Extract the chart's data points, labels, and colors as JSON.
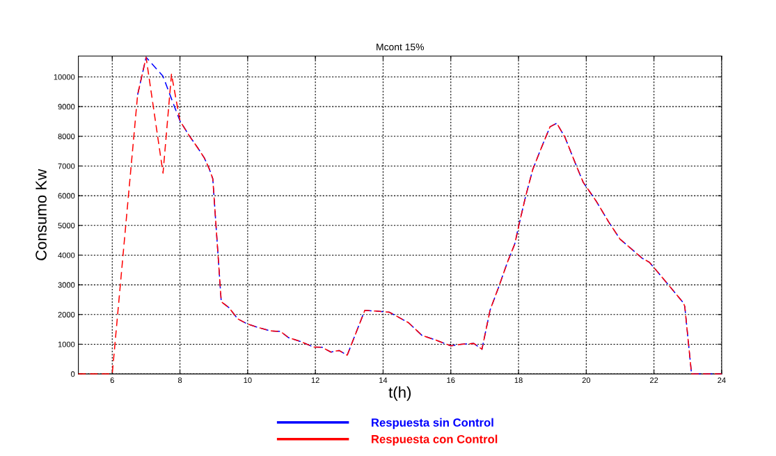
{
  "chart_data": {
    "type": "line",
    "title": "Mcont 15%",
    "xlabel": "t(h)",
    "ylabel": "Consumo Kw",
    "xlim": [
      5,
      24
    ],
    "xticks": [
      6,
      8,
      10,
      12,
      14,
      16,
      18,
      20,
      22,
      24
    ],
    "ylim": [
      0,
      10700
    ],
    "yticks": [
      0,
      1000,
      2000,
      3000,
      4000,
      5000,
      6000,
      7000,
      8000,
      9000,
      10000
    ],
    "grid": true,
    "legend": "bottom",
    "line_style": "dashed",
    "marker": "none",
    "series": [
      {
        "name": "Respuesta sin Control",
        "color": "#0000ff",
        "x": [
          6.75,
          7.0,
          7.5,
          7.84,
          8.0,
          8.28,
          8.52,
          8.72,
          8.86,
          8.97,
          9.22,
          9.44,
          9.71,
          9.98,
          10.25,
          10.66,
          10.97,
          11.21,
          11.54,
          11.95,
          12.19,
          12.46,
          12.7,
          12.94,
          13.46,
          13.79,
          14.19,
          14.75,
          15.15,
          15.56,
          16.0,
          16.31,
          16.68,
          16.92,
          17.16,
          17.43,
          17.67,
          17.89,
          18.01,
          18.21,
          18.42,
          18.62,
          18.93,
          19.13,
          19.37,
          19.71,
          19.91,
          20.29,
          20.66,
          21.0,
          21.44,
          21.65,
          21.87,
          22.36,
          22.87,
          22.91,
          23.11,
          23.66,
          24
        ],
        "values": [
          9400,
          10660,
          10020,
          8990,
          8520,
          8010,
          7620,
          7270,
          6920,
          6570,
          2430,
          2240,
          1850,
          1690,
          1585,
          1450,
          1430,
          1220,
          1100,
          905,
          900,
          735,
          790,
          630,
          2140,
          2115,
          2075,
          1725,
          1295,
          1140,
          945,
          1000,
          1025,
          830,
          2150,
          2975,
          3755,
          4380,
          5005,
          5980,
          6880,
          7460,
          8320,
          8440,
          7970,
          7000,
          6450,
          5825,
          5120,
          4535,
          4105,
          3895,
          3755,
          3090,
          2390,
          2270,
          0,
          0,
          0
        ]
      },
      {
        "name": "Respuesta con Control",
        "color": "#ff0000",
        "x": [
          5,
          6.0,
          6.75,
          7.0,
          7.5,
          7.75,
          8.0,
          8.28,
          8.52,
          8.72,
          8.86,
          8.97,
          9.22,
          9.44,
          9.71,
          9.98,
          10.25,
          10.66,
          10.97,
          11.21,
          11.54,
          11.95,
          12.19,
          12.46,
          12.7,
          12.94,
          13.46,
          13.79,
          14.19,
          14.75,
          15.15,
          15.56,
          16.0,
          16.31,
          16.68,
          16.92,
          17.16,
          17.43,
          17.67,
          17.89,
          18.01,
          18.21,
          18.42,
          18.62,
          18.93,
          19.13,
          19.37,
          19.71,
          19.91,
          20.29,
          20.66,
          21.0,
          21.44,
          21.65,
          21.87,
          22.36,
          22.87,
          22.91,
          23.11,
          23.66,
          24
        ],
        "values": [
          0,
          0,
          9400,
          10660,
          6760,
          10090,
          8520,
          8010,
          7620,
          7270,
          6920,
          6570,
          2430,
          2240,
          1850,
          1690,
          1585,
          1450,
          1430,
          1220,
          1100,
          905,
          900,
          735,
          790,
          630,
          2140,
          2115,
          2075,
          1725,
          1295,
          1140,
          945,
          1000,
          1025,
          830,
          2150,
          2975,
          3755,
          4380,
          5005,
          5980,
          6880,
          7460,
          8320,
          8440,
          7970,
          7000,
          6450,
          5825,
          5120,
          4535,
          4105,
          3895,
          3755,
          3090,
          2390,
          2270,
          0,
          0,
          0
        ]
      }
    ]
  }
}
